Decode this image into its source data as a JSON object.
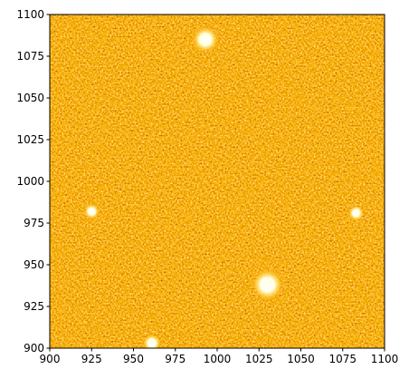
{
  "chart_data": {
    "type": "image",
    "xlim": [
      900,
      1100
    ],
    "ylim": [
      900,
      1100
    ],
    "xticks": [
      900,
      925,
      950,
      975,
      1000,
      1025,
      1050,
      1075,
      1100
    ],
    "yticks": [
      900,
      925,
      950,
      975,
      1000,
      1025,
      1050,
      1075,
      1100
    ],
    "colormap": "afmhot",
    "sources": {
      "x": [
        993,
        925,
        1083,
        1030,
        961
      ],
      "y": [
        1085,
        982,
        981,
        938,
        903
      ],
      "size": [
        5,
        3,
        3,
        6,
        3.5
      ]
    }
  }
}
